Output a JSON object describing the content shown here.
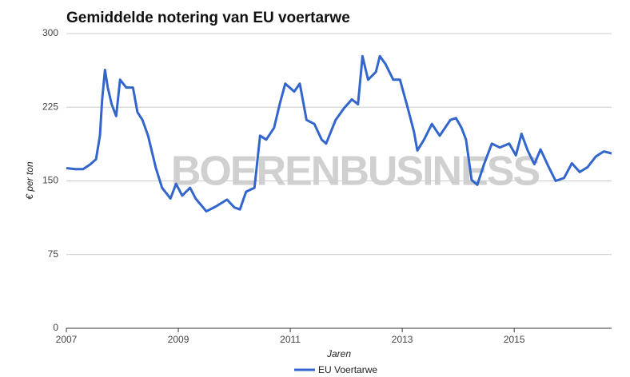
{
  "chart_data": {
    "type": "line",
    "title": "Gemiddelde notering van EU voertarwe",
    "x_label": "Jaren",
    "y_label": "€ per ton",
    "watermark": "BOERENBUSINESS",
    "x": [
      2007.0,
      2007.16,
      2007.3,
      2007.43,
      2007.53,
      2007.6,
      2007.64,
      2007.69,
      2007.74,
      2007.81,
      2007.89,
      2007.96,
      2008.07,
      2008.19,
      2008.27,
      2008.36,
      2008.46,
      2008.6,
      2008.71,
      2008.86,
      2008.96,
      2009.07,
      2009.21,
      2009.31,
      2009.5,
      2009.67,
      2009.87,
      2010.0,
      2010.1,
      2010.21,
      2010.36,
      2010.46,
      2010.57,
      2010.71,
      2010.81,
      2010.91,
      2011.07,
      2011.17,
      2011.29,
      2011.43,
      2011.56,
      2011.64,
      2011.81,
      2011.96,
      2012.1,
      2012.21,
      2012.29,
      2012.39,
      2012.53,
      2012.6,
      2012.7,
      2012.84,
      2012.96,
      2013.1,
      2013.21,
      2013.27,
      2013.39,
      2013.53,
      2013.67,
      2013.86,
      2013.96,
      2014.06,
      2014.14,
      2014.24,
      2014.34,
      2014.46,
      2014.6,
      2014.74,
      2014.91,
      2015.03,
      2015.13,
      2015.24,
      2015.36,
      2015.47,
      2015.6,
      2015.74,
      2015.89,
      2016.03,
      2016.17,
      2016.31,
      2016.46,
      2016.6,
      2016.74
    ],
    "series": [
      {
        "name": "EU Voertarwe",
        "color": "#3366cc",
        "values": [
          163,
          162,
          162,
          167,
          172,
          196,
          233,
          263,
          245,
          228,
          216,
          253,
          245,
          245,
          220,
          212,
          196,
          163,
          143,
          132,
          147,
          135,
          143,
          132,
          119,
          124,
          131,
          123,
          121,
          139,
          143,
          196,
          192,
          204,
          228,
          249,
          241,
          249,
          212,
          208,
          192,
          188,
          212,
          224,
          233,
          228,
          277,
          253,
          261,
          277,
          269,
          253,
          253,
          224,
          200,
          181,
          192,
          208,
          196,
          212,
          214,
          204,
          192,
          151,
          146,
          167,
          188,
          184,
          188,
          176,
          198,
          181,
          167,
          182,
          166,
          150,
          153,
          168,
          159,
          164,
          175,
          180,
          178
        ]
      }
    ],
    "xlim": [
      2007,
      2016.74
    ],
    "xticks": [
      2007,
      2009,
      2011,
      2013,
      2015
    ],
    "ylim": [
      0,
      300
    ],
    "yticks": [
      0,
      75,
      150,
      225,
      300
    ],
    "grid": true
  }
}
